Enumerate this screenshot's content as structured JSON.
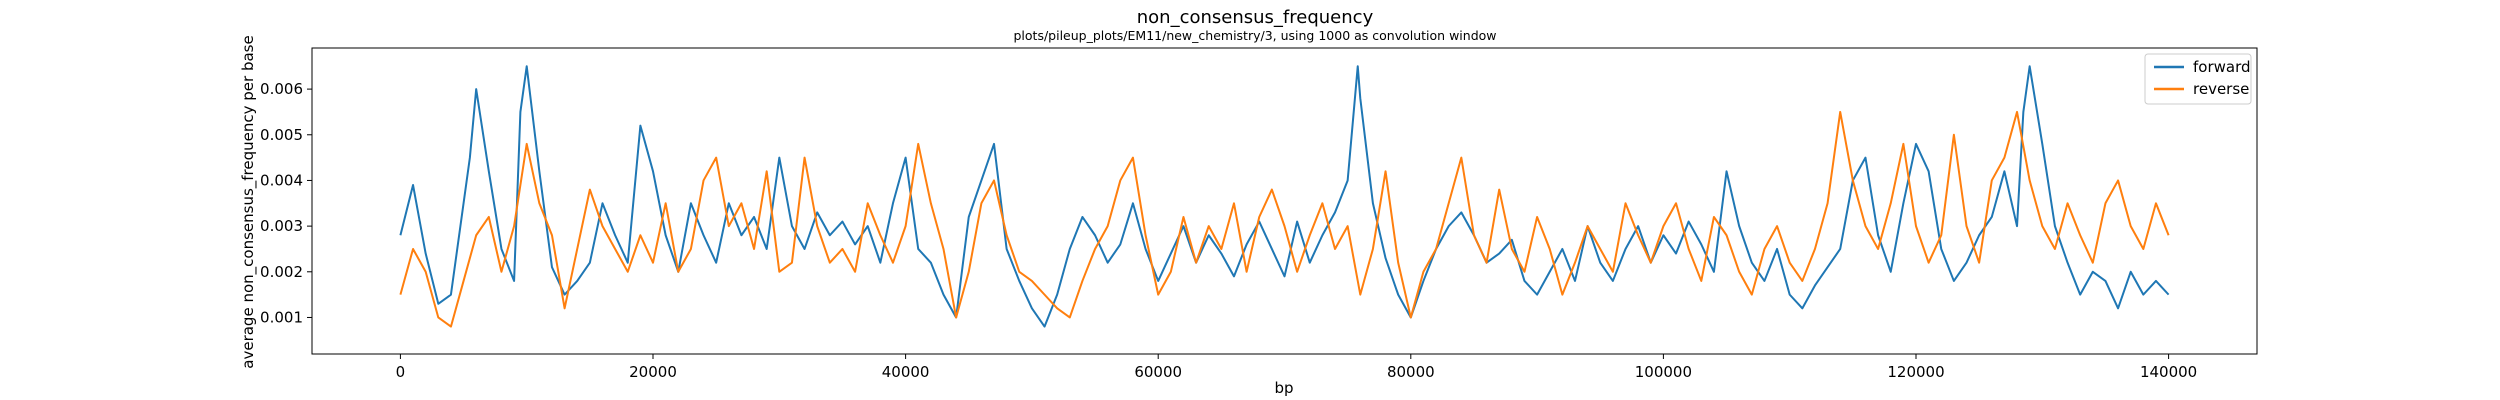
{
  "chart_data": {
    "type": "line",
    "title": "non_consensus_frequency",
    "subtitle": "plots/pileup_plots/EM11/new_chemistry/3, using 1000 as convolution window",
    "xlabel": "bp",
    "ylabel": "average non_consensus_frequency per base",
    "xlim": [
      -7000,
      147000
    ],
    "ylim": [
      0.0002,
      0.0069
    ],
    "x_ticks": [
      0,
      20000,
      40000,
      60000,
      80000,
      100000,
      120000,
      140000
    ],
    "y_ticks": [
      0.001,
      0.002,
      0.003,
      0.004,
      0.005,
      0.006
    ],
    "x_tick_labels": [
      "0",
      "20000",
      "40000",
      "60000",
      "80000",
      "100000",
      "120000",
      "140000"
    ],
    "y_tick_labels": [
      "0.001",
      "0.002",
      "0.003",
      "0.004",
      "0.005",
      "0.006"
    ],
    "grid": false,
    "legend_position": "top-right",
    "series": [
      {
        "name": "forward",
        "color": "#1f77b4",
        "x": [
          0,
          1000,
          2000,
          3000,
          4000,
          5000,
          5500,
          6000,
          7000,
          8000,
          9000,
          9500,
          10000,
          11000,
          12000,
          13000,
          14000,
          15000,
          16000,
          17000,
          18000,
          19000,
          20000,
          21000,
          22000,
          23000,
          24000,
          25000,
          26000,
          27000,
          28000,
          29000,
          30000,
          31000,
          32000,
          33000,
          34000,
          35000,
          36000,
          37000,
          38000,
          39000,
          40000,
          41000,
          42000,
          43000,
          44000,
          45000,
          46000,
          47000,
          48000,
          49000,
          50000,
          51000,
          52000,
          53000,
          54000,
          55000,
          56000,
          57000,
          58000,
          59000,
          60000,
          61000,
          62000,
          63000,
          64000,
          65000,
          66000,
          67000,
          68000,
          69000,
          70000,
          71000,
          72000,
          73000,
          74000,
          75000,
          75800,
          76000,
          77000,
          78000,
          79000,
          80000,
          81000,
          82000,
          83000,
          84000,
          85000,
          86000,
          87000,
          88000,
          89000,
          90000,
          91000,
          92000,
          93000,
          94000,
          95000,
          96000,
          97000,
          98000,
          99000,
          100000,
          101000,
          102000,
          103000,
          104000,
          105000,
          106000,
          107000,
          108000,
          109000,
          110000,
          111000,
          112000,
          113000,
          114000,
          115000,
          116000,
          117000,
          118000,
          119000,
          120000,
          121000,
          122000,
          123000,
          124000,
          125000,
          126000,
          127000,
          128000,
          128500,
          129000,
          130000,
          131000,
          132000,
          133000,
          134000,
          135000,
          136000,
          137000,
          138000,
          139000,
          140000
        ],
        "y": [
          0.0028,
          0.0039,
          0.0024,
          0.0013,
          0.0015,
          0.0035,
          0.0045,
          0.006,
          0.0042,
          0.0025,
          0.0018,
          0.0055,
          0.0065,
          0.0042,
          0.0021,
          0.0015,
          0.0018,
          0.0022,
          0.0035,
          0.0028,
          0.0022,
          0.0052,
          0.0042,
          0.0028,
          0.002,
          0.0035,
          0.0028,
          0.0022,
          0.0035,
          0.0028,
          0.0032,
          0.0025,
          0.0045,
          0.003,
          0.0025,
          0.0033,
          0.0028,
          0.0031,
          0.0026,
          0.003,
          0.0022,
          0.0035,
          0.0045,
          0.0025,
          0.0022,
          0.0015,
          0.001,
          0.0032,
          0.004,
          0.0048,
          0.0025,
          0.0018,
          0.0012,
          0.0008,
          0.0015,
          0.0025,
          0.0032,
          0.0028,
          0.0022,
          0.0026,
          0.0035,
          0.0025,
          0.0018,
          0.0024,
          0.003,
          0.0022,
          0.0028,
          0.0024,
          0.0019,
          0.0026,
          0.0031,
          0.0025,
          0.0019,
          0.0031,
          0.0022,
          0.0028,
          0.0033,
          0.004,
          0.0065,
          0.0058,
          0.0035,
          0.0023,
          0.0015,
          0.001,
          0.0018,
          0.0025,
          0.003,
          0.0033,
          0.0028,
          0.0022,
          0.0024,
          0.0027,
          0.0018,
          0.0015,
          0.002,
          0.0025,
          0.0018,
          0.003,
          0.0022,
          0.0018,
          0.0025,
          0.003,
          0.0022,
          0.0028,
          0.0024,
          0.0031,
          0.0026,
          0.002,
          0.0042,
          0.003,
          0.0022,
          0.0018,
          0.0025,
          0.0015,
          0.0012,
          0.0017,
          0.0021,
          0.0025,
          0.004,
          0.0045,
          0.0028,
          0.002,
          0.0035,
          0.0048,
          0.0042,
          0.0025,
          0.0018,
          0.0022,
          0.0028,
          0.0032,
          0.0042,
          0.003,
          0.0055,
          0.0065,
          0.0048,
          0.003,
          0.0022,
          0.0015,
          0.002,
          0.0018,
          0.0012,
          0.002,
          0.0015,
          0.0018,
          0.0015
        ],
        "values": [
          0.0028,
          0.0039,
          0.0024,
          0.0013,
          0.0015,
          0.0035,
          0.0045,
          0.006,
          0.0042,
          0.0025,
          0.0018,
          0.0055,
          0.0065,
          0.0042,
          0.0021,
          0.0015,
          0.0018,
          0.0022,
          0.0035,
          0.0028,
          0.0022,
          0.0052,
          0.0042,
          0.0028,
          0.002,
          0.0035,
          0.0028,
          0.0022,
          0.0035,
          0.0028,
          0.0032,
          0.0025,
          0.0045,
          0.003,
          0.0025,
          0.0033,
          0.0028,
          0.0031,
          0.0026,
          0.003,
          0.0022,
          0.0035,
          0.0045,
          0.0025,
          0.0022,
          0.0015,
          0.001,
          0.0032,
          0.004,
          0.0048,
          0.0025,
          0.0018,
          0.0012,
          0.0008,
          0.0015,
          0.0025,
          0.0032,
          0.0028,
          0.0022,
          0.0026,
          0.0035,
          0.0025,
          0.0018,
          0.0024,
          0.003,
          0.0022,
          0.0028,
          0.0024,
          0.0019,
          0.0026,
          0.0031,
          0.0025,
          0.0019,
          0.0031,
          0.0022,
          0.0028,
          0.0033,
          0.004,
          0.0065,
          0.0058,
          0.0035,
          0.0023,
          0.0015,
          0.001,
          0.0018,
          0.0025,
          0.003,
          0.0033,
          0.0028,
          0.0022,
          0.0024,
          0.0027,
          0.0018,
          0.0015,
          0.002,
          0.0025,
          0.0018,
          0.003,
          0.0022,
          0.0018,
          0.0025,
          0.003,
          0.0022,
          0.0028,
          0.0024,
          0.0031,
          0.0026,
          0.002,
          0.0042,
          0.003,
          0.0022,
          0.0018,
          0.0025,
          0.0015,
          0.0012,
          0.0017,
          0.0021,
          0.0025,
          0.004,
          0.0045,
          0.0028,
          0.002,
          0.0035,
          0.0048,
          0.0042,
          0.0025,
          0.0018,
          0.0022,
          0.0028,
          0.0032,
          0.0042,
          0.003,
          0.0055,
          0.0065,
          0.0048,
          0.003,
          0.0022,
          0.0015,
          0.002,
          0.0018,
          0.0012,
          0.002,
          0.0015,
          0.0018,
          0.0015
        ]
      },
      {
        "name": "reverse",
        "color": "#ff7f0e",
        "x": [
          0,
          1000,
          2000,
          3000,
          4000,
          5000,
          6000,
          7000,
          8000,
          9000,
          10000,
          11000,
          12000,
          13000,
          14000,
          15000,
          16000,
          17000,
          18000,
          19000,
          20000,
          21000,
          22000,
          23000,
          24000,
          25000,
          26000,
          27000,
          28000,
          29000,
          30000,
          31000,
          32000,
          33000,
          34000,
          35000,
          36000,
          37000,
          38000,
          39000,
          40000,
          41000,
          42000,
          43000,
          44000,
          45000,
          46000,
          47000,
          48000,
          49000,
          50000,
          51000,
          52000,
          53000,
          54000,
          55000,
          56000,
          57000,
          58000,
          59000,
          60000,
          61000,
          62000,
          63000,
          64000,
          65000,
          66000,
          67000,
          68000,
          69000,
          70000,
          71000,
          72000,
          73000,
          74000,
          75000,
          76000,
          77000,
          78000,
          79000,
          80000,
          81000,
          82000,
          83000,
          84000,
          85000,
          86000,
          87000,
          88000,
          89000,
          90000,
          91000,
          92000,
          93000,
          94000,
          95000,
          96000,
          97000,
          98000,
          99000,
          100000,
          101000,
          102000,
          103000,
          104000,
          105000,
          106000,
          107000,
          108000,
          109000,
          110000,
          111000,
          112000,
          113000,
          114000,
          115000,
          116000,
          117000,
          118000,
          119000,
          120000,
          121000,
          122000,
          123000,
          124000,
          125000,
          126000,
          127000,
          128000,
          129000,
          130000,
          131000,
          132000,
          133000,
          134000,
          135000,
          136000,
          137000,
          138000,
          139000,
          140000
        ],
        "y": [
          0.0015,
          0.0025,
          0.002,
          0.001,
          0.0008,
          0.0018,
          0.0028,
          0.0032,
          0.002,
          0.003,
          0.0048,
          0.0035,
          0.0028,
          0.0012,
          0.0025,
          0.0038,
          0.003,
          0.0025,
          0.002,
          0.0028,
          0.0022,
          0.0035,
          0.002,
          0.0025,
          0.004,
          0.0045,
          0.003,
          0.0035,
          0.0025,
          0.0042,
          0.002,
          0.0022,
          0.0045,
          0.003,
          0.0022,
          0.0025,
          0.002,
          0.0035,
          0.0028,
          0.0022,
          0.003,
          0.0048,
          0.0035,
          0.0025,
          0.001,
          0.002,
          0.0035,
          0.004,
          0.0028,
          0.002,
          0.0018,
          0.0015,
          0.0012,
          0.001,
          0.0018,
          0.0025,
          0.003,
          0.004,
          0.0045,
          0.0028,
          0.0015,
          0.002,
          0.0032,
          0.0022,
          0.003,
          0.0025,
          0.0035,
          0.002,
          0.0032,
          0.0038,
          0.003,
          0.002,
          0.0028,
          0.0035,
          0.0025,
          0.003,
          0.0015,
          0.0025,
          0.0042,
          0.0022,
          0.001,
          0.002,
          0.0025,
          0.0035,
          0.0045,
          0.0028,
          0.0022,
          0.0038,
          0.0025,
          0.002,
          0.0032,
          0.0025,
          0.0015,
          0.0022,
          0.003,
          0.0025,
          0.002,
          0.0035,
          0.0028,
          0.0022,
          0.003,
          0.0035,
          0.0025,
          0.0018,
          0.0032,
          0.0028,
          0.002,
          0.0015,
          0.0025,
          0.003,
          0.0022,
          0.0018,
          0.0025,
          0.0035,
          0.0055,
          0.004,
          0.003,
          0.0025,
          0.0035,
          0.0048,
          0.003,
          0.0022,
          0.0028,
          0.005,
          0.003,
          0.0022,
          0.004,
          0.0045,
          0.0055,
          0.004,
          0.003,
          0.0025,
          0.0035,
          0.0028,
          0.0022,
          0.0035,
          0.004,
          0.003,
          0.0025,
          0.0035,
          0.0028
        ],
        "values": [
          0.0015,
          0.0025,
          0.002,
          0.001,
          0.0008,
          0.0018,
          0.0028,
          0.0032,
          0.002,
          0.003,
          0.0048,
          0.0035,
          0.0028,
          0.0012,
          0.0025,
          0.0038,
          0.003,
          0.0025,
          0.002,
          0.0028,
          0.0022,
          0.0035,
          0.002,
          0.0025,
          0.004,
          0.0045,
          0.003,
          0.0035,
          0.0025,
          0.0042,
          0.002,
          0.0022,
          0.0045,
          0.003,
          0.0022,
          0.0025,
          0.002,
          0.0035,
          0.0028,
          0.0022,
          0.003,
          0.0048,
          0.0035,
          0.0025,
          0.001,
          0.002,
          0.0035,
          0.004,
          0.0028,
          0.002,
          0.0018,
          0.0015,
          0.0012,
          0.001,
          0.0018,
          0.0025,
          0.003,
          0.004,
          0.0045,
          0.0028,
          0.0015,
          0.002,
          0.0032,
          0.0022,
          0.003,
          0.0025,
          0.0035,
          0.002,
          0.0032,
          0.0038,
          0.003,
          0.002,
          0.0028,
          0.0035,
          0.0025,
          0.003,
          0.0015,
          0.0025,
          0.0042,
          0.0022,
          0.001,
          0.002,
          0.0025,
          0.0035,
          0.0045,
          0.0028,
          0.0022,
          0.0038,
          0.0025,
          0.002,
          0.0032,
          0.0025,
          0.0015,
          0.0022,
          0.003,
          0.0025,
          0.002,
          0.0035,
          0.0028,
          0.0022,
          0.003,
          0.0035,
          0.0025,
          0.0018,
          0.0032,
          0.0028,
          0.002,
          0.0015,
          0.0025,
          0.003,
          0.0022,
          0.0018,
          0.0025,
          0.0035,
          0.0055,
          0.004,
          0.003,
          0.0025,
          0.0035,
          0.0048,
          0.003,
          0.0022,
          0.0028,
          0.005,
          0.003,
          0.0022,
          0.004,
          0.0045,
          0.0055,
          0.004,
          0.003,
          0.0025,
          0.0035,
          0.0028,
          0.0022,
          0.0035,
          0.004,
          0.003,
          0.0025,
          0.0035,
          0.0028
        ]
      }
    ]
  }
}
